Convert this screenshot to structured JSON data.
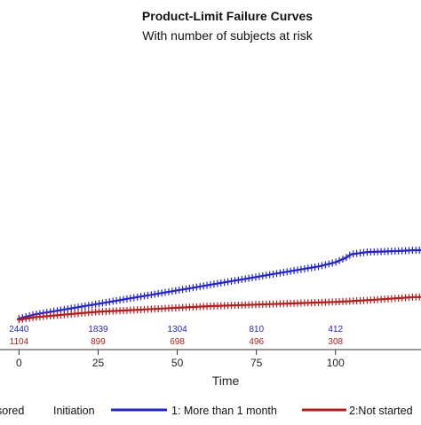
{
  "chart_data": {
    "type": "line",
    "title": "Product-Limit Failure Curves",
    "subtitle": "With number of subjects at risk",
    "xlabel": "Time",
    "ylabel": "",
    "xlim": [
      -6,
      127
    ],
    "ylim": [
      0,
      1
    ],
    "x_ticks": [
      0,
      25,
      50,
      75,
      100
    ],
    "grid": false,
    "series": [
      {
        "name": "1: More than 1 month",
        "color": "#2424c8",
        "x": [
          0,
          5,
          10,
          15,
          20,
          25,
          30,
          35,
          40,
          45,
          50,
          55,
          60,
          65,
          70,
          75,
          80,
          85,
          90,
          95,
          100,
          103,
          105,
          110,
          115,
          120,
          125,
          127
        ],
        "y": [
          0.01,
          0.025,
          0.035,
          0.045,
          0.055,
          0.065,
          0.075,
          0.085,
          0.095,
          0.105,
          0.115,
          0.125,
          0.135,
          0.145,
          0.155,
          0.165,
          0.175,
          0.185,
          0.195,
          0.205,
          0.22,
          0.235,
          0.25,
          0.258,
          0.26,
          0.262,
          0.265,
          0.265
        ]
      },
      {
        "name": "2:Not started",
        "color": "#b02020",
        "x": [
          0,
          5,
          10,
          15,
          20,
          25,
          30,
          35,
          40,
          45,
          50,
          55,
          60,
          65,
          70,
          75,
          80,
          85,
          90,
          95,
          100,
          105,
          110,
          115,
          120,
          125,
          127
        ],
        "y": [
          0.005,
          0.015,
          0.02,
          0.025,
          0.03,
          0.035,
          0.038,
          0.041,
          0.044,
          0.047,
          0.05,
          0.053,
          0.056,
          0.058,
          0.06,
          0.062,
          0.064,
          0.066,
          0.068,
          0.07,
          0.072,
          0.075,
          0.078,
          0.082,
          0.086,
          0.09,
          0.09
        ]
      }
    ],
    "at_risk": [
      {
        "name": "1: More than 1 month",
        "x": [
          0,
          25,
          50,
          75,
          100
        ],
        "values": [
          "2440",
          "1839",
          "1304",
          "810",
          "412"
        ]
      },
      {
        "name": "2:Not started",
        "x": [
          0,
          25,
          50,
          75,
          100
        ],
        "values": [
          "1104",
          "899",
          "698",
          "496",
          "308"
        ]
      }
    ],
    "legend": {
      "placement": "bottom",
      "censored_label": "sored",
      "initiation_label": "Initiation"
    }
  }
}
